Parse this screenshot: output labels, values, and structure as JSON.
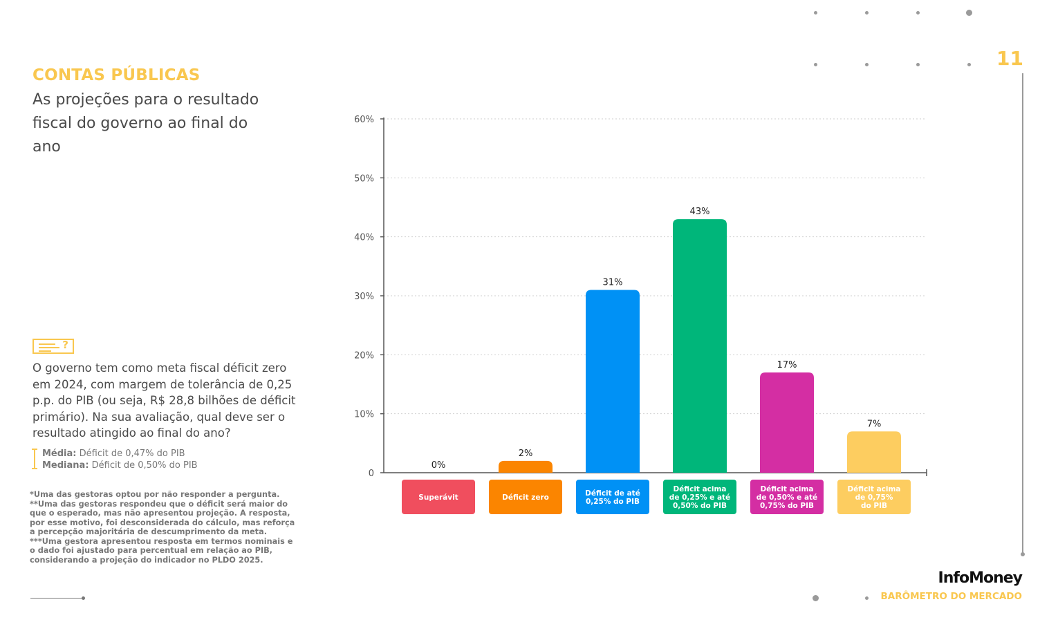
{
  "header": {
    "section": "CONTAS PÚBLICAS",
    "subtitle": "As projeções para o resultado fiscal do governo ao final do ano",
    "page_number": "11"
  },
  "question": {
    "icon": "question-note-icon",
    "text": "O governo tem como meta fiscal déficit zero em 2024, com margem de tolerância de 0,25 p.p. do PIB (ou seja, R$ 28,8 bilhões de déficit primário). Na sua avaliação, qual deve ser o resultado atingido ao final do ano?",
    "mean_label": "Média:",
    "mean_value": "Déficit de 0,47% do PIB",
    "median_label": "Mediana:",
    "median_value": "Déficit de 0,50% do PIB"
  },
  "notes": [
    "*Uma das gestoras optou por não responder a pergunta.",
    "**Uma das gestoras respondeu que o déficit será maior do que o esperado, mas não apresentou projeção. A resposta, por esse motivo, foi desconsiderada do cálculo, mas reforça a percepção majoritária de descumprimento da meta.",
    "***Uma gestora apresentou resposta em termos nominais e o dado foi ajustado para percentual em relação ao PIB, considerando a projeção do indicador no PLDO 2025."
  ],
  "footer": {
    "brand": "InfoMoney",
    "publication": "BARÔMETRO DO MERCADO"
  },
  "chart_data": {
    "type": "bar",
    "categories": [
      [
        "Superávit"
      ],
      [
        "Déficit zero"
      ],
      [
        "Déficit de até",
        "0,25% do PIB"
      ],
      [
        "Déficit acima",
        "de 0,25% e até",
        "0,50% do PIB"
      ],
      [
        "Déficit acima",
        "de 0,50% e até",
        "0,75% do PIB"
      ],
      [
        "Déficit acima",
        "de 0,75%",
        "do PIB"
      ]
    ],
    "values": [
      0,
      2,
      31,
      43,
      17,
      7
    ],
    "data_labels": [
      "0%",
      "2%",
      "31%",
      "43%",
      "17%",
      "7%"
    ],
    "colors": [
      "#f04e5e",
      "#fb8500",
      "#0091f5",
      "#00b67a",
      "#d42ea3",
      "#fdcd60"
    ],
    "ylim": [
      0,
      60
    ],
    "yticks": [
      0,
      10,
      20,
      30,
      40,
      50,
      60
    ],
    "ytick_labels": [
      "0",
      "10%",
      "20%",
      "30%",
      "40%",
      "50%",
      "60%"
    ],
    "grid": true,
    "legend": "none"
  }
}
